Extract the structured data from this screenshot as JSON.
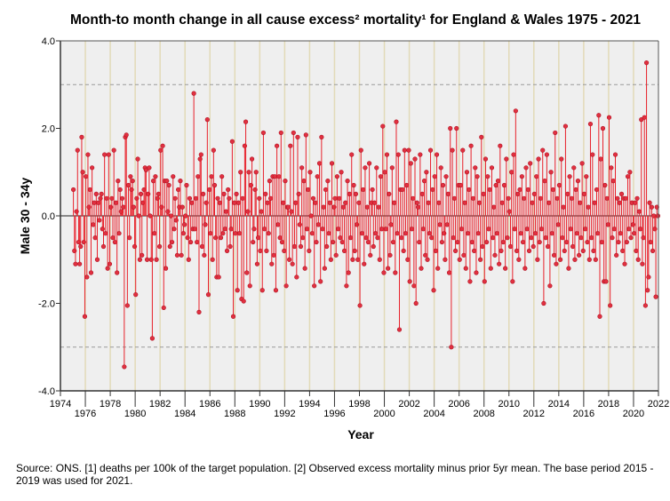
{
  "chart_data": {
    "type": "line",
    "style": "lollipop",
    "title": "Month-to month change in all cause excess² mortality¹  for England & Wales 1975 - 2021",
    "xlabel": "Year",
    "ylabel": "Male 30 - 34y",
    "xlim": [
      1974,
      2022
    ],
    "ylim": [
      -4,
      4
    ],
    "yticks": [
      "4.0",
      "2.0",
      "0.0",
      "-2.0",
      "-4.0"
    ],
    "ytick_values": [
      4,
      2,
      0,
      -2,
      -4
    ],
    "xticks": [
      "1974",
      "1976",
      "1978",
      "1980",
      "1982",
      "1984",
      "1986",
      "1988",
      "1990",
      "1992",
      "1994",
      "1996",
      "1998",
      "2000",
      "2002",
      "2004",
      "2006",
      "2008",
      "2010",
      "2012",
      "2014",
      "2016",
      "2018",
      "2020",
      "2022"
    ],
    "reference_lines": [
      3,
      -3
    ],
    "grid": true,
    "start_year": 1975,
    "frequency": "monthly",
    "series": [
      {
        "name": "Male 30 - 34y",
        "color": "#e8202a",
        "values": [
          0.6,
          -0.8,
          -1.1,
          0.1,
          1.5,
          -0.6,
          -1.1,
          -0.7,
          1.8,
          1.0,
          -0.6,
          -2.3,
          0.9,
          -1.4,
          1.4,
          0.2,
          0.6,
          -1.3,
          1.1,
          -0.2,
          0.3,
          -0.5,
          0.5,
          -1.0,
          0.3,
          -0.1,
          0.4,
          0.5,
          -0.3,
          -0.7,
          1.4,
          -0.4,
          0.4,
          -1.2,
          1.4,
          -1.1,
          0.2,
          0.4,
          -0.5,
          1.5,
          -0.6,
          0.3,
          -1.3,
          0.8,
          -0.4,
          0.6,
          0.1,
          0.4,
          0.2,
          -3.45,
          1.8,
          1.85,
          -2.05,
          0.7,
          -0.5,
          0.9,
          0.6,
          0.8,
          0.2,
          -0.7,
          -1.8,
          0.4,
          1.3,
          0.0,
          -1.0,
          0.5,
          -0.9,
          0.3,
          0.6,
          1.1,
          1.05,
          -1.0,
          0.5,
          1.1,
          0.0,
          -1.0,
          -2.8,
          0.8,
          -0.4,
          0.9,
          -1.0,
          0.4,
          0.5,
          -0.7,
          1.5,
          0.2,
          1.6,
          -2.1,
          0.8,
          -1.2,
          0.8,
          0.1,
          0.7,
          -0.7,
          0.0,
          -0.6,
          0.9,
          -0.3,
          0.4,
          -0.1,
          -0.9,
          0.6,
          0.2,
          0.8,
          -0.9,
          0.2,
          -0.4,
          -0.2,
          0.0,
          0.7,
          -0.5,
          -1.0,
          0.4,
          -0.6,
          0.3,
          -0.3,
          2.8,
          -0.3,
          0.4,
          -0.6,
          0.9,
          -2.2,
          1.3,
          1.4,
          -0.7,
          0.5,
          -0.9,
          -0.2,
          0.3,
          2.2,
          -1.8,
          0.6,
          -0.4,
          0.9,
          -1.0,
          1.5,
          0.7,
          -0.5,
          -1.4,
          0.4,
          -1.4,
          0.3,
          -0.5,
          0.9,
          -0.4,
          0.5,
          -0.3,
          0.1,
          -0.8,
          0.6,
          0.4,
          -0.7,
          -0.3,
          1.7,
          -2.3,
          0.3,
          -0.4,
          0.5,
          -1.7,
          0.3,
          -0.4,
          1.0,
          -1.9,
          0.4,
          -1.95,
          1.6,
          2.15,
          -1.3,
          0.1,
          1.0,
          -1.6,
          0.7,
          1.3,
          -0.6,
          -0.3,
          0.6,
          1.0,
          -1.1,
          -0.5,
          0.4,
          -0.8,
          0.1,
          -1.7,
          1.9,
          -0.3,
          0.5,
          -0.8,
          0.3,
          -0.4,
          0.8,
          0.4,
          -1.1,
          0.9,
          -0.9,
          0.9,
          -1.7,
          1.6,
          -0.2,
          0.9,
          -0.5,
          1.9,
          -0.6,
          0.3,
          -0.8,
          0.8,
          -1.6,
          0.2,
          0.2,
          -1.0,
          1.6,
          0.1,
          -1.1,
          1.9,
          -0.7,
          0.3,
          -1.4,
          1.8,
          0.5,
          -0.2,
          -0.7,
          1.1,
          -0.5,
          0.8,
          -1.2,
          1.85,
          -0.3,
          0.6,
          -0.8,
          1.0,
          0.0,
          -0.4,
          0.4,
          -1.6,
          0.3,
          -0.6,
          0.9,
          -0.2,
          1.2,
          -1.5,
          1.8,
          -0.3,
          0.2,
          -1.2,
          0.6,
          -0.7,
          0.8,
          -0.4,
          0.3,
          -1.0,
          1.2,
          -0.6,
          0.2,
          0.4,
          -0.9,
          0.9,
          -0.3,
          0.4,
          -0.5,
          1.0,
          -0.6,
          0.2,
          -0.8,
          0.3,
          -1.6,
          0.8,
          -1.3,
          0.5,
          -0.5,
          1.4,
          -1.0,
          0.7,
          -0.8,
          0.5,
          -0.2,
          -1.0,
          0.3,
          -2.05,
          1.5,
          -0.4,
          0.6,
          -1.1,
          1.1,
          -0.5,
          0.2,
          -0.6,
          1.2,
          -0.9,
          0.3,
          0.6,
          -0.7,
          0.3,
          -0.4,
          1.1,
          -0.5,
          0.2,
          -1.0,
          0.9,
          -0.3,
          2.05,
          -1.3,
          1.0,
          -0.3,
          1.4,
          -1.2,
          0.5,
          -0.9,
          -0.2,
          1.1,
          -0.6,
          0.3,
          -1.3,
          2.15,
          -0.4,
          1.4,
          -2.6,
          0.6,
          -0.5,
          0.6,
          -0.8,
          1.5,
          -0.4,
          0.7,
          -1.0,
          1.5,
          -1.5,
          1.2,
          -0.3,
          0.4,
          -1.6,
          1.3,
          -2.0,
          0.3,
          0.2,
          -0.6,
          1.4,
          -1.2,
          0.5,
          -0.3,
          0.8,
          -0.9,
          1.0,
          -1.0,
          0.3,
          -0.4,
          1.5,
          -0.5,
          0.6,
          -1.7,
          0.9,
          -0.8,
          1.4,
          -1.2,
          0.3,
          -0.2,
          1.1,
          -0.6,
          0.7,
          -0.4,
          -1.0,
          0.9,
          -0.2,
          0.5,
          -1.3,
          2.0,
          -3.0,
          1.5,
          -0.5,
          0.4,
          -0.8,
          2.0,
          -0.6,
          0.7,
          -1.0,
          0.7,
          -0.3,
          1.5,
          -0.9,
          0.3,
          -1.2,
          1.0,
          -0.4,
          0.6,
          -1.5,
          1.6,
          -0.6,
          0.4,
          -0.8,
          1.1,
          -1.3,
          0.9,
          -0.4,
          0.3,
          -1.0,
          1.8,
          -0.7,
          0.5,
          -1.5,
          1.3,
          -0.6,
          0.9,
          -0.3,
          0.6,
          -1.2,
          1.1,
          -0.5,
          0.2,
          -0.9,
          0.7,
          -0.4,
          0.8,
          -1.1,
          1.6,
          -0.8,
          0.3,
          -0.6,
          0.7,
          -1.2,
          1.3,
          -0.5,
          0.4,
          0.1,
          -0.7,
          1.0,
          -1.5,
          1.4,
          -0.3,
          2.4,
          -0.8,
          0.5,
          -1.0,
          0.6,
          -0.4,
          0.9,
          -0.6,
          0.4,
          -1.2,
          1.1,
          -0.3,
          0.6,
          -0.8,
          1.2,
          -0.5,
          0.3,
          -0.7,
          0.5,
          -0.4,
          0.9,
          -1.0,
          1.3,
          -0.6,
          0.4,
          -0.3,
          1.5,
          -2.0,
          0.8,
          -0.5,
          1.4,
          -0.7,
          0.3,
          -1.6,
          1.0,
          -0.4,
          0.6,
          -0.9,
          1.9,
          -1.1,
          0.4,
          -0.2,
          0.7,
          -1.0,
          1.3,
          -0.5,
          0.2,
          -0.8,
          2.05,
          -0.6,
          0.5,
          -1.2,
          0.9,
          -0.3,
          0.4,
          -0.7,
          1.1,
          -1.0,
          0.6,
          -0.4,
          0.8,
          -0.9,
          0.3,
          -0.5,
          1.2,
          -0.8,
          0.5,
          -0.3,
          0.9,
          -0.6,
          0.2,
          -1.0,
          2.1,
          -0.5,
          1.4,
          -0.8,
          0.3,
          -1.0,
          0.6,
          -0.4,
          2.3,
          -2.3,
          1.3,
          -0.6,
          2.0,
          -1.5,
          0.7,
          -1.5,
          0.4,
          -0.2,
          2.25,
          -2.05,
          1.1,
          -0.5,
          0.8,
          -0.3,
          1.4,
          -0.9,
          0.4,
          -0.6,
          0.3,
          -0.4,
          0.5,
          -0.8,
          0.4,
          -1.1,
          0.4,
          -0.6,
          0.9,
          -0.3,
          1.0,
          -0.5,
          0.3,
          -0.2,
          -0.4,
          0.3,
          -0.8,
          0.4,
          -1.0,
          0.1,
          -0.3,
          2.2,
          -1.1,
          -0.5,
          2.25,
          -2.05,
          3.5,
          -1.7,
          -1.4,
          0.3,
          -0.6,
          0.2,
          -0.8,
          0.0,
          -0.3,
          -1.85,
          0.2,
          0.0
        ]
      }
    ]
  },
  "footnote": "Source: ONS. [1] deaths per 100k of the target population. [2] Observed excess mortality minus prior 5yr mean. The base period 2015 - 2019 was used for 2021."
}
